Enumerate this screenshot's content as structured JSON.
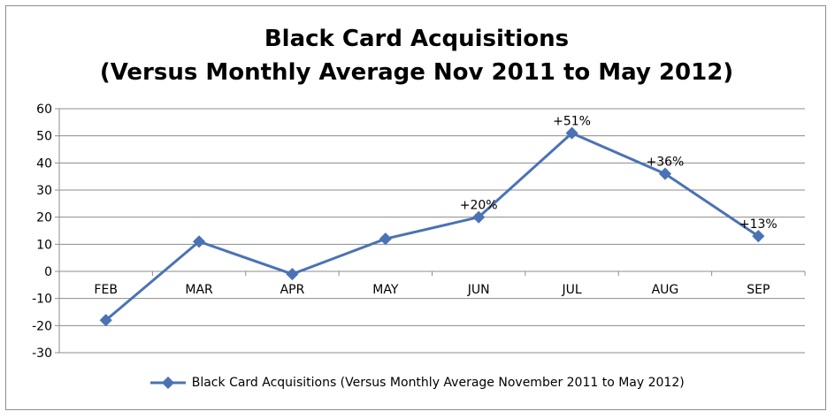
{
  "chart_data": {
    "type": "line",
    "title_line1": "Black Card Acquisitions",
    "title_line2": "(Versus Monthly Average Nov 2011 to May 2012)",
    "categories": [
      "FEB",
      "MAR",
      "APR",
      "MAY",
      "JUN",
      "JUL",
      "AUG",
      "SEP"
    ],
    "series": [
      {
        "name": "Black Card Acquisitions (Versus Monthly Average November 2011 to May 2012)",
        "values": [
          -18,
          11,
          -1,
          12,
          20,
          51,
          36,
          13
        ],
        "data_labels": [
          "",
          "",
          "",
          "",
          "+20%",
          "+51%",
          "+36%",
          "+13%"
        ]
      }
    ],
    "ylim": [
      -30,
      60
    ],
    "yticks": [
      60,
      50,
      40,
      30,
      20,
      10,
      0,
      -10,
      -20,
      -30
    ],
    "grid": true,
    "legend_position": "bottom",
    "line_color": "#4a72b5"
  }
}
